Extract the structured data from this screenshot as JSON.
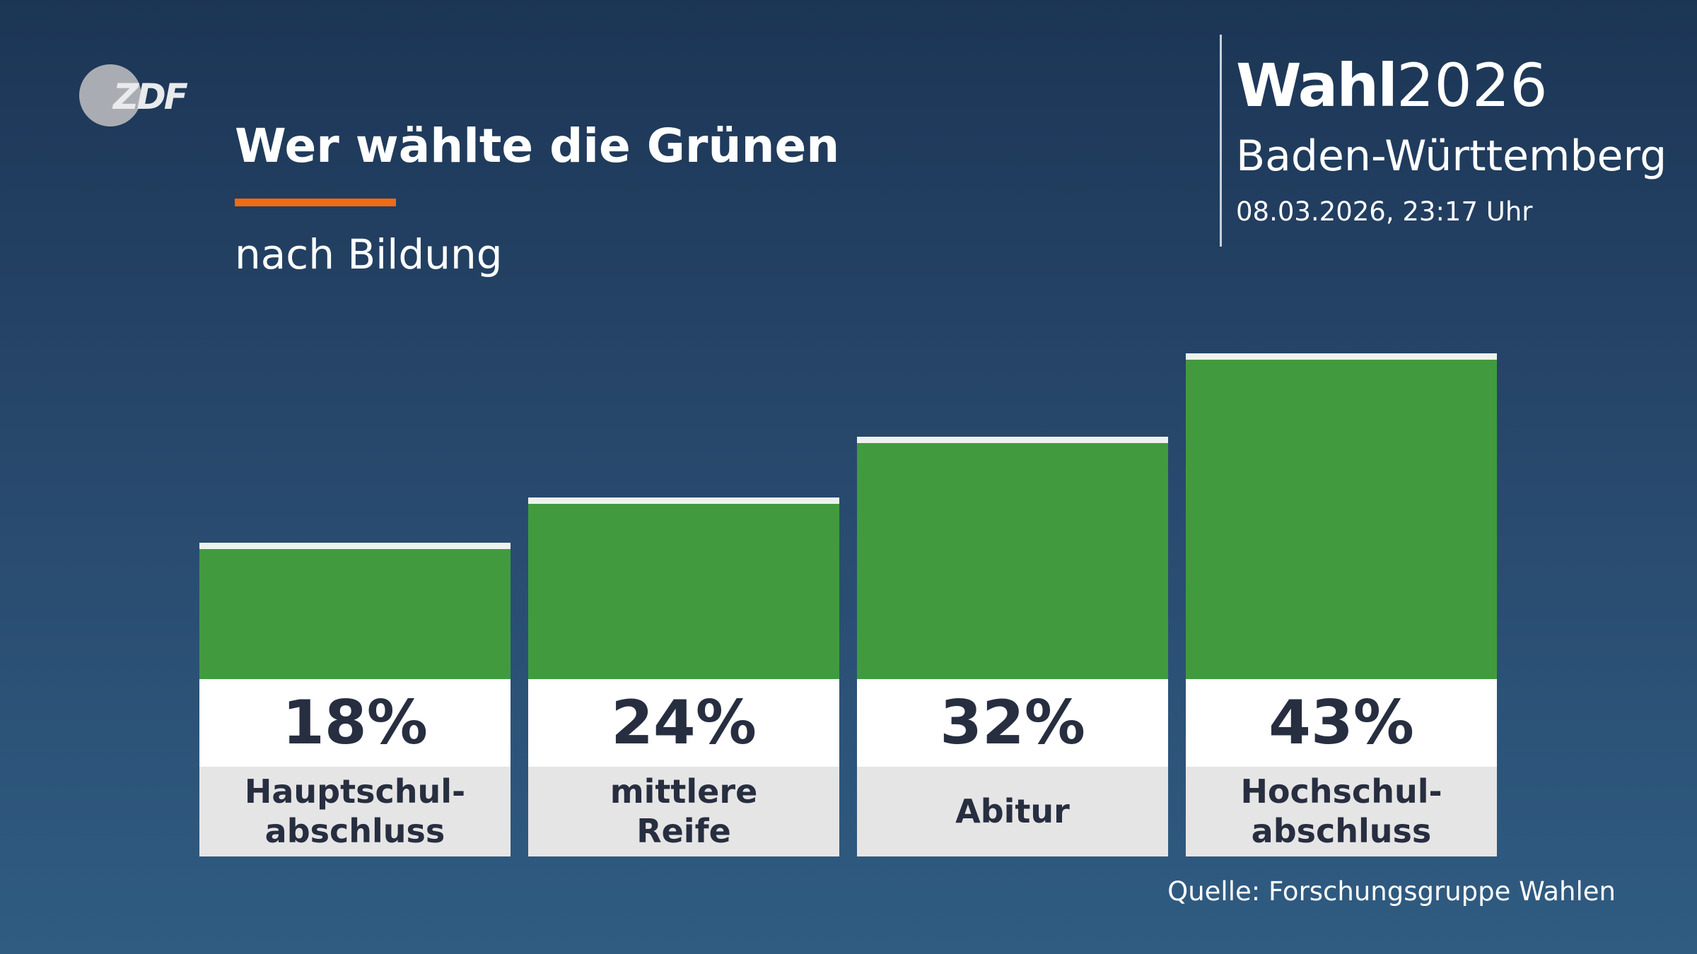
{
  "header": {
    "logo": "ZDF",
    "brand": "Wahl",
    "year": "2026",
    "region": "Baden-Württemberg",
    "timestamp": "08.03.2026, 23:17 Uhr"
  },
  "chart_data": {
    "type": "bar",
    "title": "Wer wählte die Grünen",
    "subtitle": "nach Bildung",
    "categories": [
      "Hauptschul-\nabschluss",
      "mittlere\nReife",
      "Abitur",
      "Hochschul-\nabschluss"
    ],
    "values": [
      18,
      24,
      32,
      43
    ],
    "value_labels": [
      "18%",
      "24%",
      "32%",
      "43%"
    ],
    "color": "#419b3e",
    "source": "Quelle: Forschungsgruppe Wahlen"
  }
}
